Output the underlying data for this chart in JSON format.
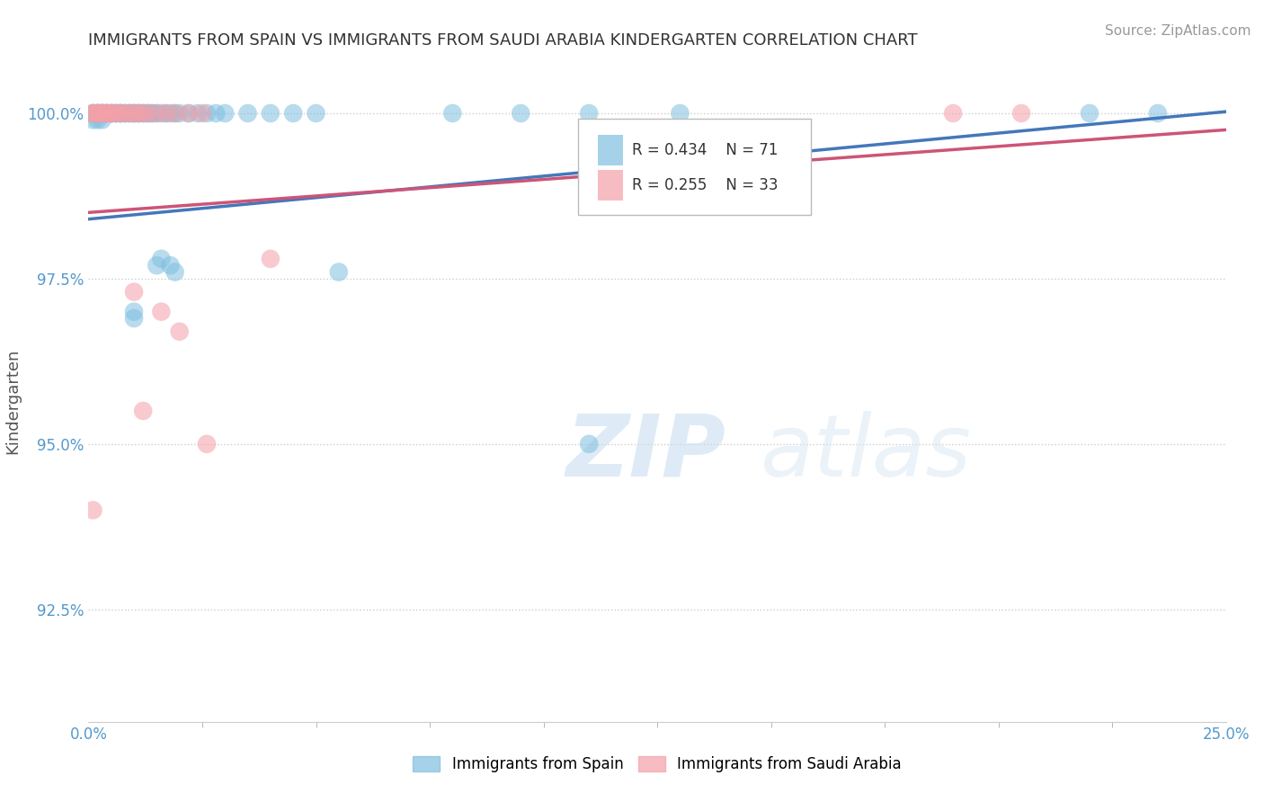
{
  "title": "IMMIGRANTS FROM SPAIN VS IMMIGRANTS FROM SAUDI ARABIA KINDERGARTEN CORRELATION CHART",
  "source": "Source: ZipAtlas.com",
  "ylabel": "Kindergarten",
  "xlim": [
    0.0,
    0.25
  ],
  "ylim": [
    0.908,
    1.005
  ],
  "yticks": [
    0.925,
    0.95,
    0.975,
    1.0
  ],
  "ytick_labels": [
    "92.5%",
    "95.0%",
    "97.5%",
    "100.0%"
  ],
  "xticks": [
    0.0,
    0.25
  ],
  "xtick_labels": [
    "0.0%",
    "25.0%"
  ],
  "r_spain": 0.434,
  "n_spain": 71,
  "r_saudi": 0.255,
  "n_saudi": 33,
  "color_spain": "#7fbfdf",
  "color_saudi": "#f4a0a8",
  "legend_spain": "Immigrants from Spain",
  "legend_saudi": "Immigrants from Saudi Arabia",
  "watermark_zip": "ZIP",
  "watermark_atlas": "atlas",
  "background_color": "#ffffff",
  "grid_color": "#cccccc",
  "title_color": "#333333",
  "axis_label_color": "#555555",
  "tick_color_y": "#5599cc",
  "tick_color_x": "#5599cc",
  "source_color": "#999999",
  "line_color_spain": "#4477bb",
  "line_color_saudi": "#cc5577"
}
